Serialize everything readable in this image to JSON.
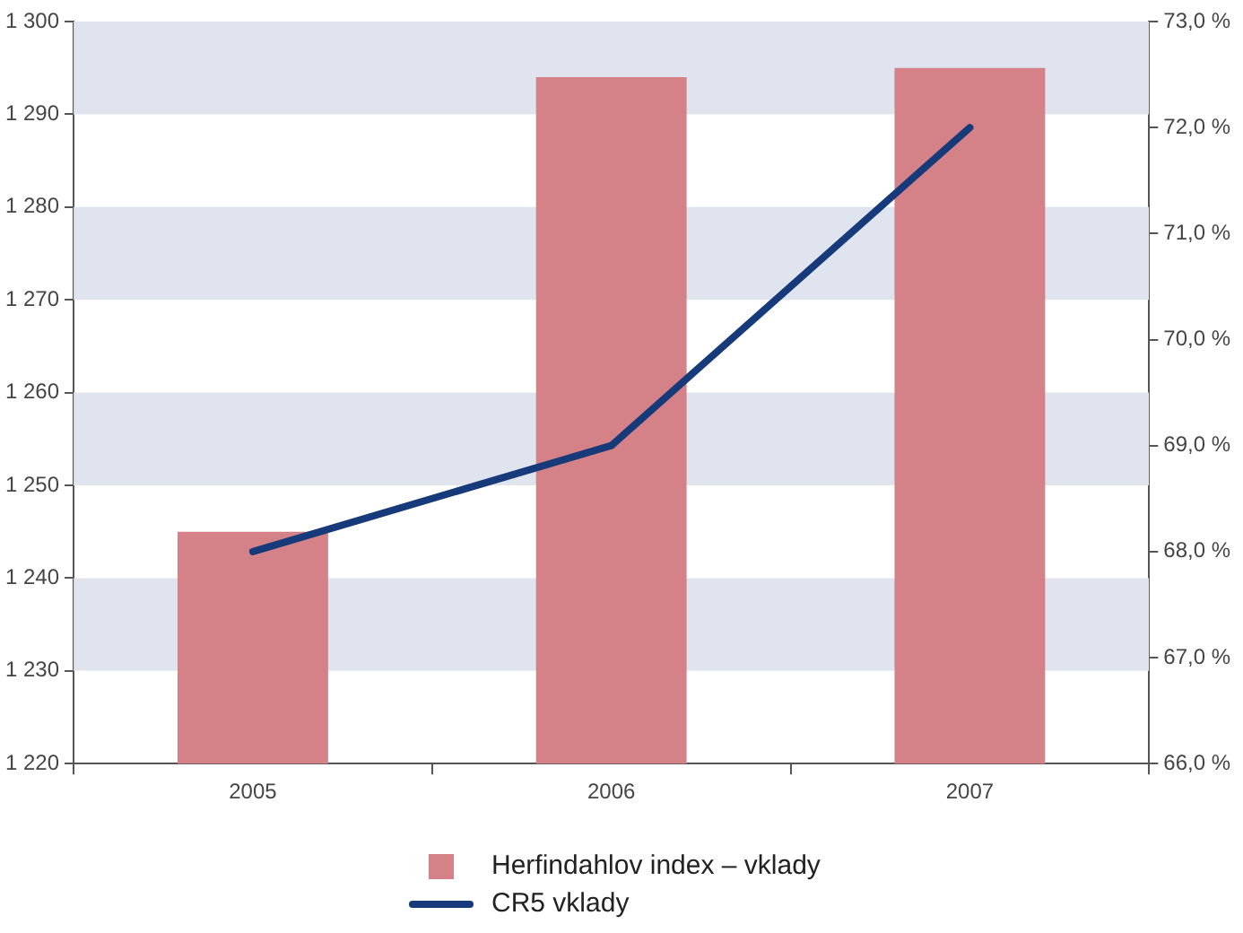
{
  "chart_data": {
    "type": "bar",
    "categories": [
      "2005",
      "2006",
      "2007"
    ],
    "series": [
      {
        "name": "Herfindahlov index – vklady",
        "color": "#d48187",
        "values": [
          1245,
          1294,
          1295
        ]
      },
      {
        "name": "CR5 vklady",
        "type": "line",
        "axis": "y2",
        "color": "#173a7a",
        "values": [
          68.0,
          69.0,
          72.0
        ],
        "marker": "none",
        "line_style": "solid"
      }
    ],
    "ylim": [
      1220,
      1300
    ],
    "yticks": [
      {
        "value": 1220,
        "label": "1 220"
      },
      {
        "value": 1230,
        "label": "1 230"
      },
      {
        "value": 1240,
        "label": "1 240"
      },
      {
        "value": 1250,
        "label": "1 250"
      },
      {
        "value": 1260,
        "label": "1 260"
      },
      {
        "value": 1270,
        "label": "1 270"
      },
      {
        "value": 1280,
        "label": "1 280"
      },
      {
        "value": 1290,
        "label": "1 290"
      },
      {
        "value": 1300,
        "label": "1 300"
      }
    ],
    "y2lim": [
      66,
      73
    ],
    "y2ticks": [
      {
        "value": 66,
        "label": "66,0 %"
      },
      {
        "value": 67,
        "label": "67,0 %"
      },
      {
        "value": 68,
        "label": "68,0 %"
      },
      {
        "value": 69,
        "label": "69,0 %"
      },
      {
        "value": 70,
        "label": "70,0 %"
      },
      {
        "value": 71,
        "label": "71,0 %"
      },
      {
        "value": 72,
        "label": "72,0 %"
      },
      {
        "value": 73,
        "label": "73,0 %"
      }
    ],
    "bands": [
      {
        "axis": "y",
        "from": 1230,
        "to": 1240,
        "color": "#dfe4ee"
      },
      {
        "axis": "y",
        "from": 1250,
        "to": 1260,
        "color": "#dfe4ee"
      },
      {
        "axis": "y",
        "from": 1270,
        "to": 1280,
        "color": "#dfe4ee"
      },
      {
        "axis": "y",
        "from": 1290,
        "to": 1300,
        "color": "#dfe4ee"
      }
    ],
    "grid": false,
    "legend": "bottom"
  }
}
